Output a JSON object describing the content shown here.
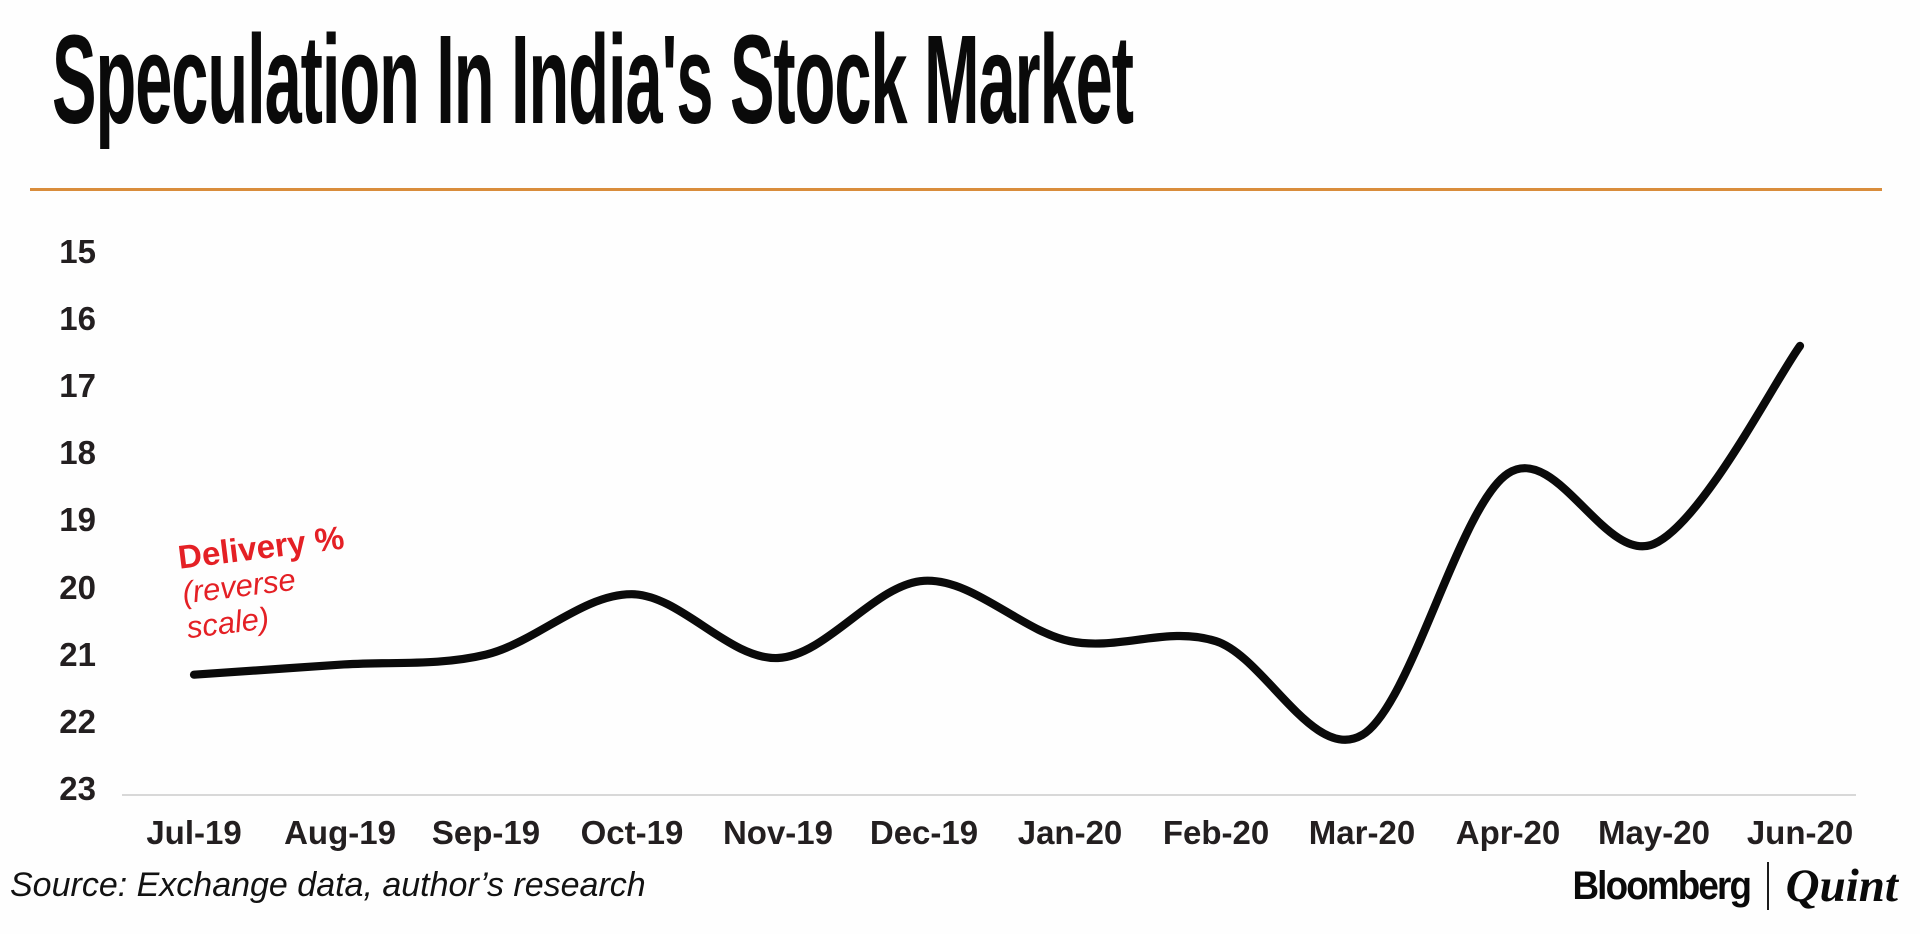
{
  "header": {
    "title": "Speculation In India's Stock Market",
    "divider_color": "#d98d3c"
  },
  "chart_data": {
    "type": "line",
    "title": "Speculation In India's Stock Market",
    "x": [
      "Jul-19",
      "Aug-19",
      "Sep-19",
      "Oct-19",
      "Nov-19",
      "Dec-19",
      "Jan-20",
      "Feb-20",
      "Mar-20",
      "Apr-20",
      "May-20",
      "Jun-20"
    ],
    "series": [
      {
        "name": "Delivery %",
        "values": [
          21.3,
          21.15,
          21.0,
          20.1,
          21.05,
          19.9,
          20.8,
          20.8,
          22.2,
          18.3,
          19.35,
          16.4
        ],
        "color": "#0a0a0a",
        "stroke_width": 8.2
      }
    ],
    "y_axis": {
      "ticks": [
        15,
        16,
        17,
        18,
        19,
        20,
        21,
        22,
        23
      ],
      "reversed": true,
      "range": [
        15,
        23.1
      ],
      "label": "Delivery % (reverse scale)"
    },
    "x_axis": {
      "baseline_color": "#d8d8d8"
    },
    "grid": "off",
    "legend": "none",
    "annotation": {
      "lines": [
        "Delivery %",
        "(reverse",
        "scale)"
      ],
      "color": "#e42025"
    }
  },
  "footer": {
    "source": "Source: Exchange data, author’s research",
    "brand": {
      "bloomberg": "Bloomberg",
      "separator": "|",
      "quint": "Quint"
    }
  }
}
